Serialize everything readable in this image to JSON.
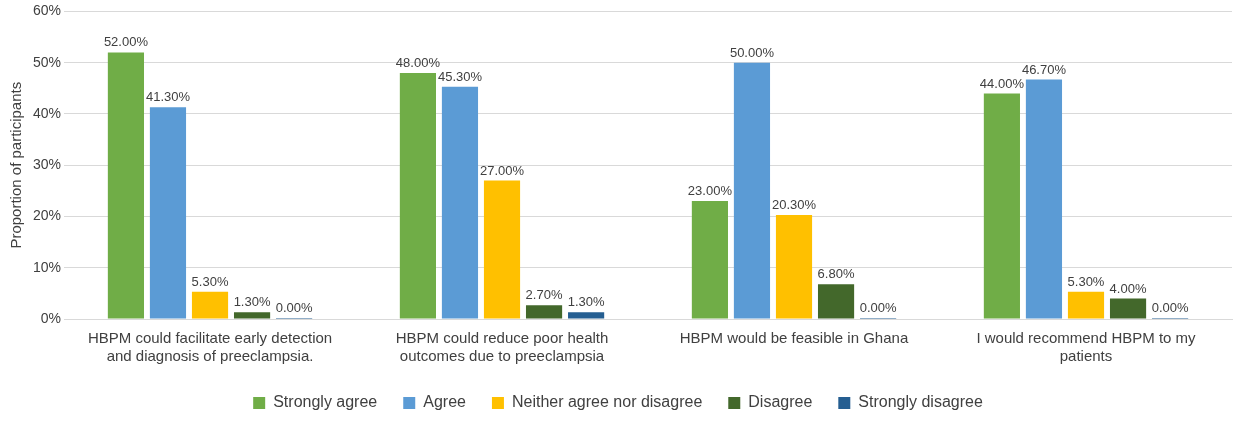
{
  "chart_data": {
    "type": "bar",
    "ylabel": "Proportion of participants",
    "categories": [
      "HBPM could facilitate early detection and diagnosis of preeclampsia.",
      "HBPM could reduce poor health outcomes due to preeclampsia",
      "HBPM would be feasible in Ghana",
      "I would recommend HBPM to my patients"
    ],
    "series": [
      {
        "name": "Strongly agree",
        "color": "#70ad47",
        "values": [
          52,
          48,
          23,
          44
        ],
        "value_labels": [
          "52.00%",
          "48.00%",
          "23.00%",
          "44.00%"
        ]
      },
      {
        "name": "Agree",
        "color": "#5b9bd5",
        "values": [
          41.3,
          45.3,
          50,
          46.7
        ],
        "value_labels": [
          "41.30%",
          "45.30%",
          "50.00%",
          "46.70%"
        ]
      },
      {
        "name": "Neither agree nor disagree",
        "color": "#ffc000",
        "values": [
          5.3,
          27,
          20.3,
          5.3
        ],
        "value_labels": [
          "5.30%",
          "27.00%",
          "20.30%",
          "5.30%"
        ]
      },
      {
        "name": "Disagree",
        "color": "#43682b",
        "values": [
          1.3,
          2.7,
          6.8,
          4
        ],
        "value_labels": [
          "1.30%",
          "2.70%",
          "6.80%",
          "4.00%"
        ]
      },
      {
        "name": "Strongly disagree",
        "color": "#255e91",
        "values": [
          0,
          1.3,
          0,
          0
        ],
        "value_labels": [
          "0.00%",
          "1.30%",
          "0.00%",
          "0.00%"
        ]
      }
    ],
    "ylim": [
      0,
      60
    ],
    "yticks": [
      {
        "value": 0,
        "label": "0%"
      },
      {
        "value": 10,
        "label": "10%"
      },
      {
        "value": 20,
        "label": "20%"
      },
      {
        "value": 30,
        "label": "30%"
      },
      {
        "value": 40,
        "label": "40%"
      },
      {
        "value": 50,
        "label": "50%"
      },
      {
        "value": 60,
        "label": "60%"
      }
    ],
    "grid": "y",
    "legend": "bottom"
  }
}
